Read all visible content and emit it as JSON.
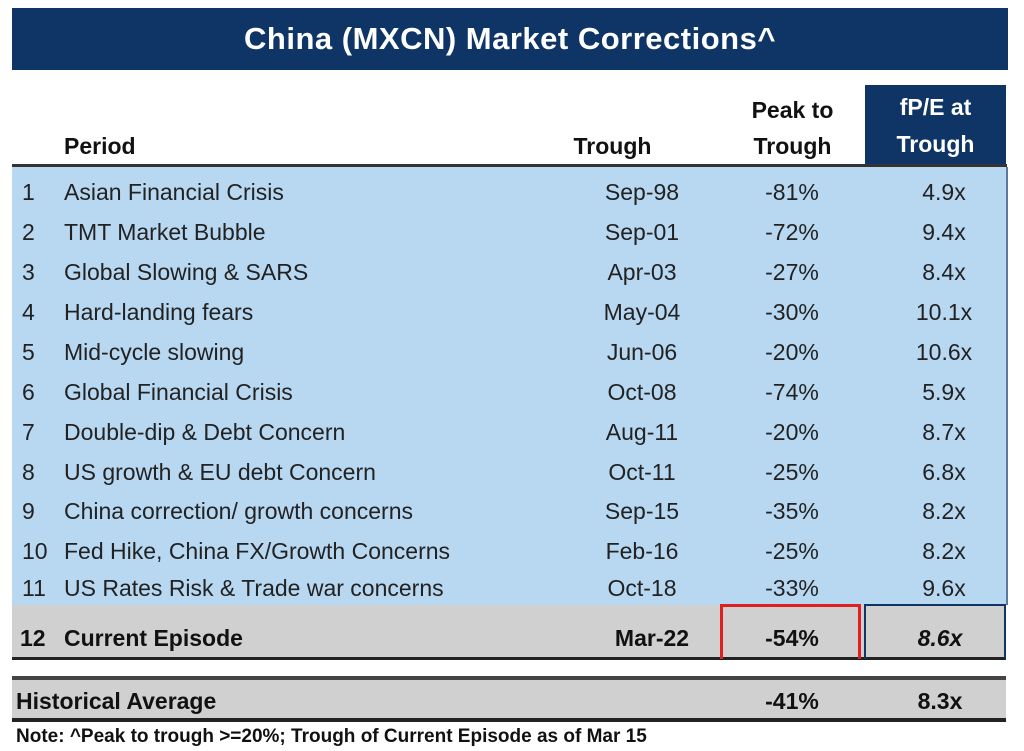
{
  "title": "China (MXCN) Market Corrections^",
  "headers": {
    "period": "Period",
    "trough": "Trough",
    "peak_to_trough": [
      "Peak to",
      "Trough"
    ],
    "fpe": [
      "fP/E at",
      "Trough"
    ]
  },
  "rows": [
    {
      "num": "1",
      "period": "Asian Financial Crisis",
      "trough": "Sep-98",
      "peak_to_trough": "-81%",
      "fpe": "4.9x"
    },
    {
      "num": "2",
      "period": "TMT Market Bubble",
      "trough": "Sep-01",
      "peak_to_trough": "-72%",
      "fpe": "9.4x"
    },
    {
      "num": "3",
      "period": "Global Slowing & SARS",
      "trough": "Apr-03",
      "peak_to_trough": "-27%",
      "fpe": "8.4x"
    },
    {
      "num": "4",
      "period": "Hard-landing fears",
      "trough": "May-04",
      "peak_to_trough": "-30%",
      "fpe": "10.1x"
    },
    {
      "num": "5",
      "period": "Mid-cycle slowing",
      "trough": "Jun-06",
      "peak_to_trough": "-20%",
      "fpe": "10.6x"
    },
    {
      "num": "6",
      "period": "Global Financial Crisis",
      "trough": "Oct-08",
      "peak_to_trough": "-74%",
      "fpe": "5.9x"
    },
    {
      "num": "7",
      "period": "Double-dip & Debt Concern",
      "trough": "Aug-11",
      "peak_to_trough": "-20%",
      "fpe": "8.7x"
    },
    {
      "num": "8",
      "period": "US growth & EU debt Concern",
      "trough": "Oct-11",
      "peak_to_trough": "-25%",
      "fpe": "6.8x"
    },
    {
      "num": "9",
      "period": "China correction/ growth concerns",
      "trough": "Sep-15",
      "peak_to_trough": "-35%",
      "fpe": "8.2x"
    },
    {
      "num": "10",
      "period": "Fed Hike, China FX/Growth Concerns",
      "trough": "Feb-16",
      "peak_to_trough": "-25%",
      "fpe": "8.2x"
    },
    {
      "num": "11",
      "period": "US Rates Risk & Trade war concerns",
      "trough": "Oct-18",
      "peak_to_trough": "-33%",
      "fpe": "9.6x"
    }
  ],
  "current": {
    "num": "12",
    "period": "Current Episode",
    "trough": "Mar-22",
    "peak_to_trough": "-54%",
    "fpe": "8.6x"
  },
  "average": {
    "label": "Historical Average",
    "peak_to_trough": "-41%",
    "fpe": "8.3x"
  },
  "note": "Note: ^Peak to trough >=20%; Trough of Current Episode as of Mar 15",
  "colors": {
    "title_bg": "#0e3566",
    "body_bg": "#b8d8f1",
    "highlight_bg": "#d0d0d0",
    "red_box": "#e02020"
  },
  "chart_data": {
    "type": "table",
    "title": "China (MXCN) Market Corrections^",
    "columns": [
      "",
      "Period",
      "Trough",
      "Peak to Trough",
      "fP/E at Trough"
    ]
  }
}
